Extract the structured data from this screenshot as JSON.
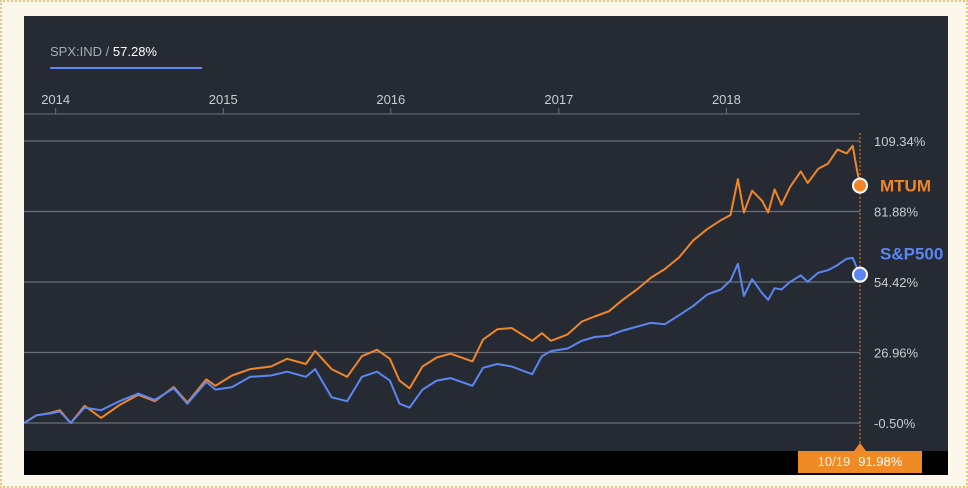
{
  "tab": {
    "ticker": "SPX:IND",
    "separator": "/",
    "value": "57.28%"
  },
  "crosshair": {
    "date": "10/19",
    "value": "91.98%"
  },
  "colors": {
    "background": "#252a33",
    "mtum": "#f0862a",
    "sp500": "#5c86f2",
    "grid": "#6b7079",
    "axis_text": "#c9ccd1"
  },
  "chart_data": {
    "type": "line",
    "x_unit": "date",
    "x_ticks": [
      "2014",
      "2015",
      "2016",
      "2017",
      "2018"
    ],
    "y_ticks": [
      "109.34%",
      "81.88%",
      "54.42%",
      "26.96%",
      "-0.50%"
    ],
    "ylim": [
      -0.5,
      109.34
    ],
    "xlim": [
      "2013-10-24",
      "2018-10-19"
    ],
    "grid": true,
    "series": [
      {
        "name": "MTUM",
        "color": "#f0862a",
        "end_value": 91.98,
        "points": [
          [
            "2013-10-24",
            -0.5
          ],
          [
            "2013-11-20",
            2.5
          ],
          [
            "2013-12-20",
            3.4
          ],
          [
            "2014-01-10",
            4.5
          ],
          [
            "2014-02-03",
            -0.5
          ],
          [
            "2014-03-05",
            6.2
          ],
          [
            "2014-04-10",
            1.5
          ],
          [
            "2014-05-20",
            6.5
          ],
          [
            "2014-06-30",
            10.5
          ],
          [
            "2014-08-05",
            8.0
          ],
          [
            "2014-09-15",
            13.5
          ],
          [
            "2014-10-15",
            7.5
          ],
          [
            "2014-11-25",
            16.5
          ],
          [
            "2014-12-15",
            14.0
          ],
          [
            "2015-01-20",
            18.0
          ],
          [
            "2015-03-01",
            20.5
          ],
          [
            "2015-04-15",
            21.5
          ],
          [
            "2015-05-20",
            24.5
          ],
          [
            "2015-06-30",
            22.5
          ],
          [
            "2015-07-20",
            27.5
          ],
          [
            "2015-08-25",
            20.5
          ],
          [
            "2015-09-28",
            17.5
          ],
          [
            "2015-10-30",
            25.5
          ],
          [
            "2015-12-02",
            28.0
          ],
          [
            "2015-12-30",
            24.5
          ],
          [
            "2016-01-20",
            16.0
          ],
          [
            "2016-02-11",
            13.0
          ],
          [
            "2016-03-10",
            21.5
          ],
          [
            "2016-04-10",
            25.0
          ],
          [
            "2016-05-10",
            26.5
          ],
          [
            "2016-06-27",
            23.5
          ],
          [
            "2016-07-20",
            32.0
          ],
          [
            "2016-08-20",
            36.0
          ],
          [
            "2016-09-20",
            36.5
          ],
          [
            "2016-11-04",
            31.5
          ],
          [
            "2016-11-25",
            34.5
          ],
          [
            "2016-12-15",
            31.5
          ],
          [
            "2017-01-20",
            34.0
          ],
          [
            "2017-02-20",
            39.0
          ],
          [
            "2017-03-20",
            41.0
          ],
          [
            "2017-04-20",
            43.0
          ],
          [
            "2017-05-20",
            47.5
          ],
          [
            "2017-06-20",
            51.5
          ],
          [
            "2017-07-20",
            56.0
          ],
          [
            "2017-08-20",
            59.5
          ],
          [
            "2017-09-20",
            64.0
          ],
          [
            "2017-10-20",
            70.5
          ],
          [
            "2017-11-20",
            75.0
          ],
          [
            "2017-12-20",
            78.5
          ],
          [
            "2018-01-10",
            80.5
          ],
          [
            "2018-01-26",
            94.5
          ],
          [
            "2018-02-08",
            81.5
          ],
          [
            "2018-02-26",
            90.0
          ],
          [
            "2018-03-20",
            86.0
          ],
          [
            "2018-04-02",
            81.5
          ],
          [
            "2018-04-16",
            90.5
          ],
          [
            "2018-05-01",
            84.5
          ],
          [
            "2018-05-20",
            91.5
          ],
          [
            "2018-06-12",
            97.5
          ],
          [
            "2018-06-27",
            93.0
          ],
          [
            "2018-07-20",
            98.5
          ],
          [
            "2018-08-10",
            100.5
          ],
          [
            "2018-08-31",
            106.0
          ],
          [
            "2018-09-20",
            104.5
          ],
          [
            "2018-10-03",
            107.5
          ],
          [
            "2018-10-11",
            99.5
          ],
          [
            "2018-10-19",
            91.98
          ]
        ]
      },
      {
        "name": "S&P500",
        "color": "#5c86f2",
        "end_value": 57.28,
        "points": [
          [
            "2013-10-24",
            -0.5
          ],
          [
            "2013-11-20",
            2.5
          ],
          [
            "2013-12-20",
            3.2
          ],
          [
            "2014-01-10",
            4.0
          ],
          [
            "2014-02-03",
            -0.5
          ],
          [
            "2014-03-05",
            5.5
          ],
          [
            "2014-04-10",
            4.5
          ],
          [
            "2014-05-20",
            8.0
          ],
          [
            "2014-06-30",
            11.0
          ],
          [
            "2014-08-05",
            8.5
          ],
          [
            "2014-09-15",
            13.0
          ],
          [
            "2014-10-15",
            7.0
          ],
          [
            "2014-11-25",
            15.5
          ],
          [
            "2014-12-15",
            12.5
          ],
          [
            "2015-01-20",
            13.5
          ],
          [
            "2015-03-01",
            17.5
          ],
          [
            "2015-04-15",
            18.0
          ],
          [
            "2015-05-20",
            19.5
          ],
          [
            "2015-06-30",
            17.5
          ],
          [
            "2015-07-20",
            20.5
          ],
          [
            "2015-08-25",
            9.5
          ],
          [
            "2015-09-28",
            8.0
          ],
          [
            "2015-10-30",
            17.5
          ],
          [
            "2015-12-02",
            19.5
          ],
          [
            "2015-12-30",
            16.0
          ],
          [
            "2016-01-20",
            7.0
          ],
          [
            "2016-02-11",
            5.5
          ],
          [
            "2016-03-10",
            12.5
          ],
          [
            "2016-04-10",
            16.0
          ],
          [
            "2016-05-10",
            17.0
          ],
          [
            "2016-06-27",
            14.0
          ],
          [
            "2016-07-20",
            21.0
          ],
          [
            "2016-08-20",
            22.5
          ],
          [
            "2016-09-20",
            21.5
          ],
          [
            "2016-11-04",
            18.5
          ],
          [
            "2016-11-25",
            25.5
          ],
          [
            "2016-12-15",
            27.5
          ],
          [
            "2017-01-20",
            28.5
          ],
          [
            "2017-02-20",
            31.5
          ],
          [
            "2017-03-20",
            33.0
          ],
          [
            "2017-04-20",
            33.5
          ],
          [
            "2017-05-20",
            35.5
          ],
          [
            "2017-06-20",
            37.0
          ],
          [
            "2017-07-20",
            38.5
          ],
          [
            "2017-08-20",
            38.0
          ],
          [
            "2017-09-20",
            41.5
          ],
          [
            "2017-10-20",
            45.0
          ],
          [
            "2017-11-20",
            49.5
          ],
          [
            "2017-12-20",
            51.5
          ],
          [
            "2018-01-10",
            55.0
          ],
          [
            "2018-01-26",
            61.5
          ],
          [
            "2018-02-08",
            49.0
          ],
          [
            "2018-02-26",
            55.5
          ],
          [
            "2018-03-20",
            50.0
          ],
          [
            "2018-04-02",
            47.5
          ],
          [
            "2018-04-16",
            52.0
          ],
          [
            "2018-05-01",
            51.5
          ],
          [
            "2018-05-20",
            54.5
          ],
          [
            "2018-06-12",
            57.0
          ],
          [
            "2018-06-27",
            54.5
          ],
          [
            "2018-07-20",
            58.0
          ],
          [
            "2018-08-10",
            59.0
          ],
          [
            "2018-08-31",
            61.0
          ],
          [
            "2018-09-20",
            63.5
          ],
          [
            "2018-10-03",
            63.8
          ],
          [
            "2018-10-11",
            60.5
          ],
          [
            "2018-10-19",
            57.28
          ]
        ]
      }
    ]
  }
}
